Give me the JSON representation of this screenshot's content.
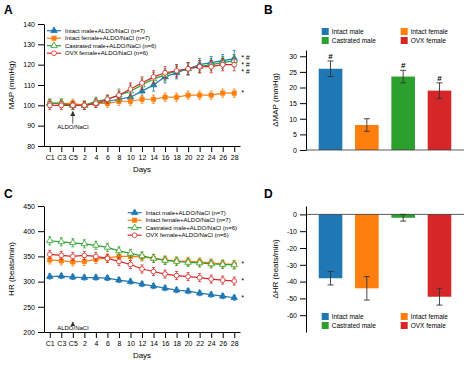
{
  "chart_data": [
    {
      "type": "line",
      "title": "A",
      "xlabel": "Days",
      "ylabel": "MAP (mmHg)",
      "categories": [
        "C1",
        "C3",
        "C5",
        "2",
        "4",
        "6",
        "8",
        "10",
        "12",
        "14",
        "16",
        "18",
        "20",
        "22",
        "24",
        "26",
        "28"
      ],
      "series": [
        {
          "name": "Intact male+ALDO/NaCl (n=7)",
          "marker": "triangle",
          "values": [
            101,
            101,
            100,
            100,
            101,
            102,
            103,
            104,
            107,
            110,
            114,
            116,
            118,
            120,
            121,
            122,
            123
          ],
          "errors": [
            2,
            2,
            2,
            2,
            2,
            2,
            2,
            2,
            3,
            3,
            3,
            3,
            3,
            3,
            3,
            3,
            4
          ]
        },
        {
          "name": "Intact female+ALDO/NaCl (n=7)",
          "marker": "square",
          "values": [
            101,
            101,
            101,
            100,
            101,
            101,
            102,
            102,
            103,
            103,
            104,
            104,
            105,
            105,
            105,
            106,
            106
          ],
          "errors": [
            2,
            2,
            2,
            2,
            2,
            2,
            2,
            2,
            2,
            2,
            2,
            2,
            2,
            2,
            2,
            2,
            2
          ]
        },
        {
          "name": "Castrated male+ALDO/NaCl (n=6)",
          "marker": "triangle-open",
          "values": [
            101,
            101,
            100,
            100,
            102,
            103,
            105,
            107,
            110,
            113,
            115,
            117,
            118,
            119,
            120,
            121,
            122
          ],
          "errors": [
            2,
            2,
            2,
            2,
            2,
            2,
            3,
            3,
            3,
            3,
            3,
            3,
            3,
            3,
            3,
            3,
            3
          ]
        },
        {
          "name": "OVX female+ALDO/NaCl (n=6)",
          "marker": "circle-open",
          "values": [
            100,
            100,
            100,
            100,
            101,
            103,
            105,
            108,
            111,
            114,
            116,
            117,
            118,
            119,
            119,
            120,
            120
          ],
          "errors": [
            2,
            2,
            2,
            2,
            2,
            2,
            2,
            3,
            3,
            3,
            3,
            3,
            3,
            3,
            3,
            3,
            3
          ]
        }
      ],
      "ylim": [
        80,
        140
      ],
      "yticks": [
        80,
        90,
        100,
        110,
        120,
        130,
        140
      ],
      "grid": false,
      "legend": "upper left",
      "annotations": [
        {
          "text": "ALDO/NaCl",
          "x": "C5",
          "y": 90.5,
          "arrow": [
            91,
            97
          ]
        },
        {
          "text": "* #",
          "x": "28",
          "y": 123
        },
        {
          "text": "* #",
          "x": "28",
          "y": 122
        },
        {
          "text": "* #",
          "x": "28",
          "y": 120
        },
        {
          "text": "*",
          "x": "28",
          "y": 106
        }
      ]
    },
    {
      "type": "bar",
      "title": "B",
      "ylabel": "ΔMAP (mmHg)",
      "categories": [
        "Intact male",
        "Intact female",
        "Castrated male",
        "OVX female"
      ],
      "values": [
        26,
        8,
        23.5,
        19
      ],
      "errors": [
        2.5,
        2.0,
        2.0,
        2.5
      ],
      "ylim": [
        0,
        32
      ],
      "yticks": [
        0,
        5,
        10,
        15,
        20,
        25,
        30
      ],
      "grid": false,
      "legend": "top",
      "tick_labels": "y",
      "annotations": [
        {
          "text": "#",
          "x": "Intact male"
        },
        {
          "text": "#",
          "x": "Castrated male"
        },
        {
          "text": "#",
          "x": "OVX female"
        }
      ]
    },
    {
      "type": "line",
      "title": "C",
      "xlabel": "Days",
      "ylabel": "HR (beats/min)",
      "categories": [
        "C1",
        "C3",
        "C5",
        "2",
        "4",
        "6",
        "8",
        "10",
        "12",
        "14",
        "16",
        "18",
        "20",
        "22",
        "24",
        "26",
        "28"
      ],
      "series": [
        {
          "name": "Intact male+ALDO/NaCl (n=7)",
          "marker": "triangle",
          "values": [
            310,
            311,
            309,
            308,
            308,
            307,
            303,
            300,
            295,
            291,
            287,
            283,
            281,
            277,
            274,
            271,
            268
          ],
          "errors": [
            5,
            5,
            5,
            5,
            5,
            5,
            5,
            5,
            5,
            5,
            5,
            5,
            5,
            5,
            5,
            5,
            5
          ]
        },
        {
          "name": "Intact female+ALDO/NaCl (n=7)",
          "marker": "square",
          "values": [
            343,
            341,
            339,
            340,
            344,
            347,
            350,
            350,
            349,
            346,
            343,
            341,
            340,
            339,
            337,
            335,
            334
          ],
          "errors": [
            8,
            8,
            8,
            8,
            8,
            8,
            8,
            8,
            8,
            8,
            8,
            8,
            8,
            8,
            8,
            8,
            8
          ]
        },
        {
          "name": "Castrated male+ALDO/NaCl (n=6)",
          "marker": "triangle-open",
          "values": [
            381,
            379,
            377,
            375,
            372,
            368,
            361,
            356,
            351,
            346,
            342,
            340,
            338,
            337,
            335,
            334,
            333
          ],
          "errors": [
            8,
            8,
            8,
            8,
            8,
            8,
            8,
            8,
            8,
            8,
            8,
            8,
            8,
            8,
            8,
            8,
            8
          ]
        },
        {
          "name": "OVX female+ALDO/NaCl (n=6)",
          "marker": "circle-open",
          "values": [
            354,
            352,
            350,
            352,
            350,
            346,
            340,
            334,
            325,
            320,
            315,
            312,
            310,
            308,
            305,
            303,
            301
          ],
          "errors": [
            8,
            8,
            8,
            8,
            8,
            8,
            8,
            8,
            8,
            8,
            8,
            8,
            8,
            8,
            8,
            8,
            8
          ]
        }
      ],
      "ylim": [
        200,
        450
      ],
      "yticks": [
        200,
        250,
        300,
        350,
        400,
        450
      ],
      "grid": false,
      "legend": "upper right",
      "annotations": [
        {
          "text": "ALDO/NaCl",
          "x": "C5",
          "y": 211,
          "arrow": [
            212,
            220
          ]
        },
        {
          "text": "*",
          "x": "28",
          "y": 334
        },
        {
          "text": "*",
          "x": "28",
          "y": 301
        },
        {
          "text": "*",
          "x": "28",
          "y": 268
        }
      ]
    },
    {
      "type": "bar",
      "title": "D",
      "ylabel": "ΔHR (beats/min)",
      "categories": [
        "Intact male",
        "Intact female",
        "Castrated male",
        "OVX female"
      ],
      "values": [
        -38,
        -44,
        -2,
        -49
      ],
      "errors": [
        4,
        7,
        2,
        5
      ],
      "ylim": [
        -70,
        5
      ],
      "yticks": [
        -60,
        -50,
        -40,
        -30,
        -20,
        -10,
        0
      ],
      "grid": false,
      "legend": "lower center",
      "tick_labels": "y"
    }
  ]
}
